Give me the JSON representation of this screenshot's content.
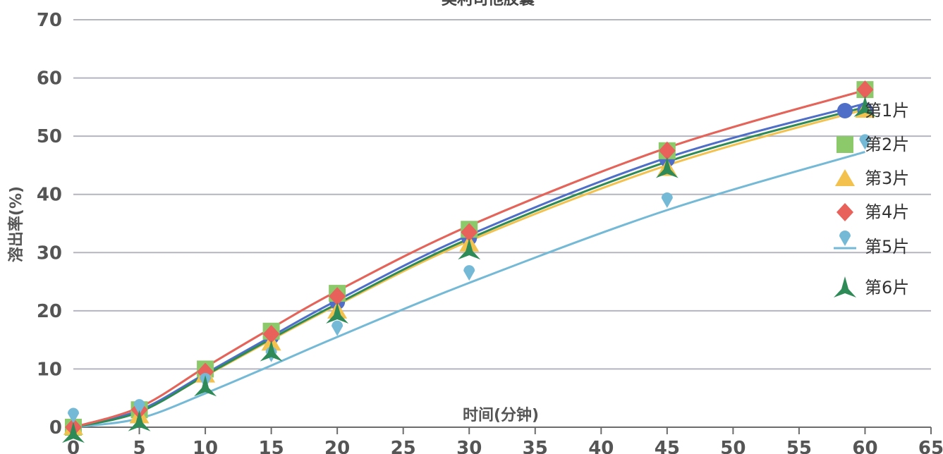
{
  "chart_data": {
    "type": "scatter",
    "title": "奥利司他胶囊",
    "xlabel": "时间(分钟)",
    "ylabel": "溶出率(%)",
    "xlim": [
      0,
      65
    ],
    "ylim": [
      0,
      70
    ],
    "xticks": [
      "0",
      "5",
      "10",
      "15",
      "20",
      "25",
      "30",
      "35",
      "40",
      "45",
      "50",
      "55",
      "60",
      "65"
    ],
    "yticks": [
      "0",
      "10",
      "20",
      "30",
      "40",
      "50",
      "60",
      "70"
    ],
    "grid": "horizontal",
    "legend_position": "right",
    "x": [
      0,
      5,
      10,
      15,
      20,
      30,
      45,
      60
    ],
    "series": [
      {
        "name": "第1片",
        "values": [
          0,
          2.5,
          9.5,
          15.5,
          21.5,
          32.5,
          46.0,
          54.5
        ],
        "fit": [
          0,
          2.9,
          9.2,
          15.6,
          21.8,
          33.0,
          46.3,
          55.6
        ],
        "color": "#4e6ec7",
        "marker": "circle"
      },
      {
        "name": "第2片",
        "values": [
          0,
          3.0,
          10.0,
          16.5,
          23.0,
          34.0,
          47.5,
          58.0
        ],
        "fit": [
          0,
          3.4,
          10.3,
          17.0,
          23.4,
          34.6,
          48.0,
          57.9
        ],
        "color": "#8cc96a",
        "marker": "square"
      },
      {
        "name": "第3片",
        "values": [
          0,
          2.0,
          9.0,
          14.5,
          20.0,
          31.5,
          44.5,
          54.5
        ],
        "fit": [
          0,
          2.7,
          8.8,
          15.0,
          21.0,
          32.0,
          45.0,
          54.6
        ],
        "color": "#f2c14e",
        "marker": "triangle"
      },
      {
        "name": "第4片",
        "values": [
          0,
          3.0,
          9.5,
          16.0,
          22.5,
          33.5,
          47.5,
          58.0
        ],
        "fit": [
          0,
          3.4,
          10.3,
          17.0,
          23.4,
          34.6,
          48.0,
          57.9
        ],
        "color": "#e8615b",
        "marker": "diamond"
      },
      {
        "name": "第5片",
        "values": [
          2.0,
          3.5,
          8.0,
          12.5,
          17.0,
          26.5,
          39.0,
          49.0
        ],
        "fit": [
          0,
          1.5,
          5.8,
          10.6,
          15.5,
          24.8,
          37.3,
          47.3
        ],
        "color": "#74b9d6",
        "marker": "pin"
      },
      {
        "name": "第6片",
        "values": [
          -1.0,
          1.0,
          7.0,
          13.0,
          19.5,
          30.5,
          44.5,
          55.0
        ],
        "fit": [
          0,
          2.6,
          8.9,
          15.2,
          21.2,
          32.4,
          45.6,
          55.0
        ],
        "color": "#2e8b57",
        "marker": "star"
      }
    ]
  }
}
